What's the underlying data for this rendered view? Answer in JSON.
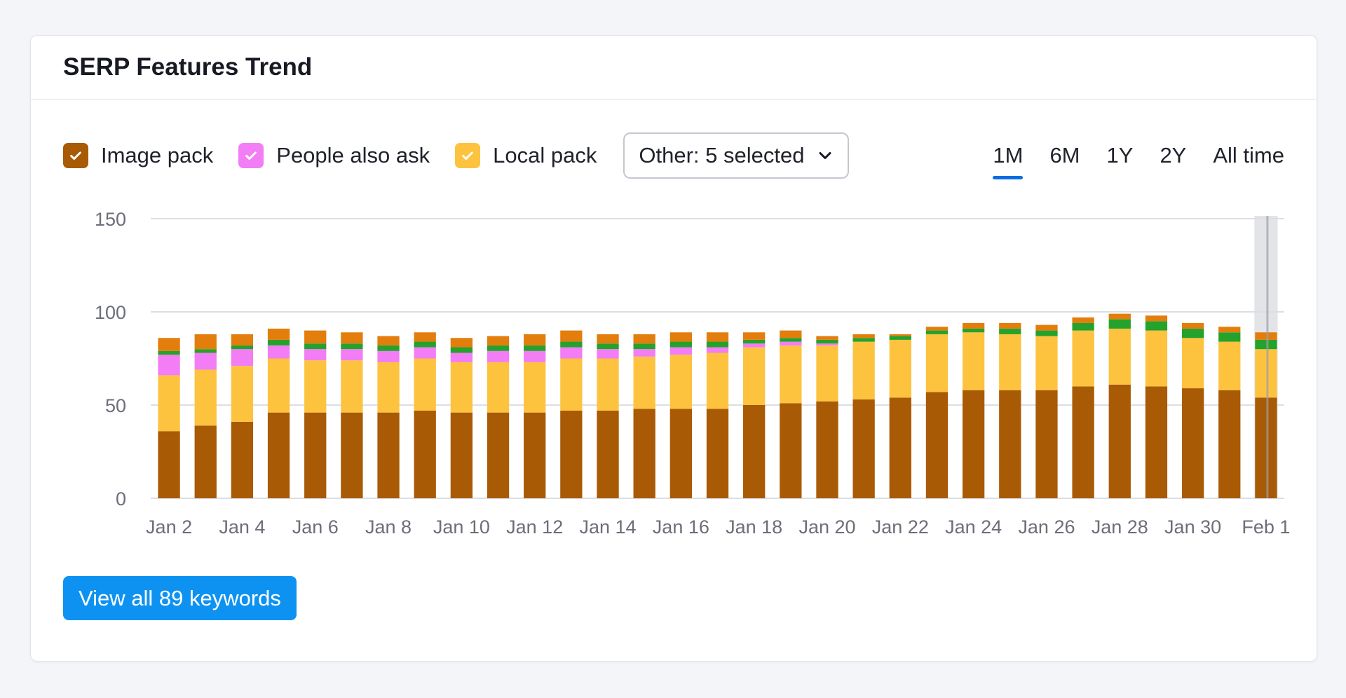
{
  "card": {
    "title": "SERP Features Trend"
  },
  "legend": [
    {
      "label": "Image pack",
      "color": "#a85a05"
    },
    {
      "label": "People also ask",
      "color": "#f27df5"
    },
    {
      "label": "Local pack",
      "color": "#fdc33f"
    }
  ],
  "other_dropdown": {
    "label": "Other: 5 selected",
    "icon": "chevron-down-icon"
  },
  "periods": [
    {
      "label": "1M",
      "active": true
    },
    {
      "label": "6M",
      "active": false
    },
    {
      "label": "1Y",
      "active": false
    },
    {
      "label": "2Y",
      "active": false
    },
    {
      "label": "All time",
      "active": false
    }
  ],
  "button": {
    "label": "View all 89 keywords"
  },
  "chart_data": {
    "type": "bar",
    "stacked": true,
    "ylim": [
      0,
      150
    ],
    "yticks": [
      0,
      50,
      100,
      150
    ],
    "grid": true,
    "highlighted_category": "Feb 1",
    "x_tick_labels": [
      "Jan 2",
      "Jan 4",
      "Jan 6",
      "Jan 8",
      "Jan 10",
      "Jan 12",
      "Jan 14",
      "Jan 16",
      "Jan 18",
      "Jan 20",
      "Jan 22",
      "Jan 24",
      "Jan 26",
      "Jan 28",
      "Jan 30",
      "Feb 1"
    ],
    "categories": [
      "Jan 2",
      "Jan 3",
      "Jan 4",
      "Jan 5",
      "Jan 6",
      "Jan 7",
      "Jan 8",
      "Jan 9",
      "Jan 10",
      "Jan 11",
      "Jan 12",
      "Jan 13",
      "Jan 14",
      "Jan 15",
      "Jan 16",
      "Jan 17",
      "Jan 18",
      "Jan 19",
      "Jan 20",
      "Jan 21",
      "Jan 22",
      "Jan 23",
      "Jan 24",
      "Jan 25",
      "Jan 26",
      "Jan 27",
      "Jan 28",
      "Jan 29",
      "Jan 30",
      "Jan 31",
      "Feb 1"
    ],
    "series": [
      {
        "name": "Image pack",
        "color": "#a85a05",
        "values": [
          36,
          39,
          41,
          46,
          46,
          46,
          46,
          47,
          46,
          46,
          46,
          47,
          47,
          48,
          48,
          48,
          50,
          51,
          52,
          53,
          54,
          57,
          58,
          58,
          58,
          60,
          61,
          60,
          59,
          58,
          54
        ]
      },
      {
        "name": "Local pack",
        "color": "#fdc33f",
        "values": [
          30,
          30,
          30,
          29,
          28,
          28,
          27,
          28,
          27,
          27,
          27,
          28,
          28,
          28,
          29,
          30,
          31,
          31,
          30,
          31,
          31,
          31,
          31,
          30,
          29,
          30,
          30,
          30,
          27,
          26,
          26
        ]
      },
      {
        "name": "People also ask",
        "color": "#f27df5",
        "values": [
          11,
          9,
          9,
          7,
          6,
          6,
          6,
          6,
          5,
          6,
          6,
          6,
          5,
          4,
          4,
          3,
          2,
          2,
          1,
          0,
          0,
          0,
          0,
          0,
          0,
          0,
          0,
          0,
          0,
          0,
          0
        ]
      },
      {
        "color": "#25a22b",
        "values": [
          2,
          2,
          2,
          3,
          3,
          3,
          3,
          3,
          3,
          3,
          3,
          3,
          3,
          3,
          3,
          3,
          2,
          2,
          2,
          2,
          2,
          2,
          2,
          3,
          3,
          4,
          5,
          5,
          5,
          5,
          5
        ]
      },
      {
        "color": "#e37d0c",
        "values": [
          7,
          8,
          6,
          6,
          7,
          6,
          5,
          5,
          5,
          5,
          6,
          6,
          5,
          5,
          5,
          5,
          4,
          4,
          2,
          2,
          1,
          2,
          3,
          3,
          3,
          3,
          3,
          3,
          3,
          3,
          4
        ]
      }
    ]
  }
}
